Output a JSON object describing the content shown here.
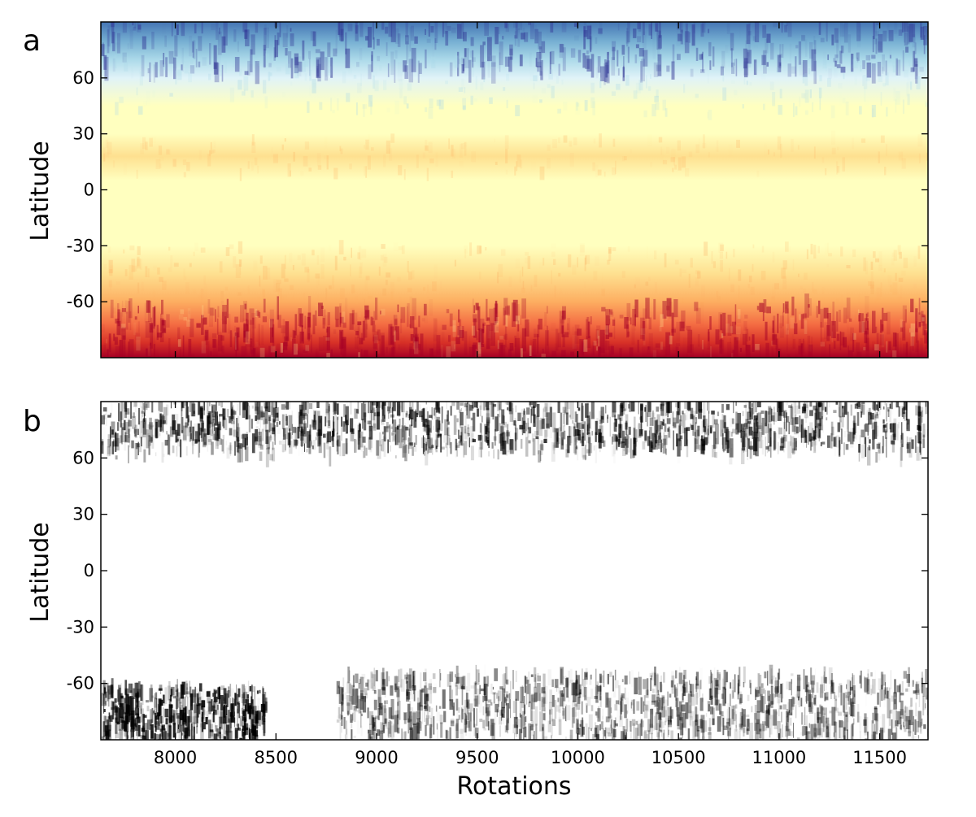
{
  "chart_data": [
    {
      "type": "heatmap",
      "panel_label": "a",
      "title": "",
      "xlabel": "",
      "ylabel": "Latitude",
      "xlim": [
        7630,
        11740
      ],
      "ylim": [
        -90,
        90
      ],
      "yticks": [
        60,
        30,
        0,
        -30,
        -60
      ],
      "xticks_visible": false,
      "colormap": "diverging red-yellow-blue (red at south, blue at north)",
      "colors": {
        "deep_red": "#a50026",
        "red": "#d73027",
        "orange": "#f46d43",
        "light_orange": "#fdae61",
        "pale_yellow": "#fee090",
        "cream": "#ffffbf",
        "pale_blue": "#e0f3f8",
        "light_blue": "#abd9e9",
        "mid_blue": "#74add1",
        "blue": "#4575b4",
        "deep_blue": "#313695"
      },
      "latitude_profile": [
        {
          "lat": 90,
          "level": 0.8
        },
        {
          "lat": 80,
          "level": 0.62
        },
        {
          "lat": 70,
          "level": 0.4
        },
        {
          "lat": 60,
          "level": 0.18
        },
        {
          "lat": 45,
          "level": 0.05
        },
        {
          "lat": 30,
          "level": -0.06
        },
        {
          "lat": 18,
          "level": -0.12
        },
        {
          "lat": 5,
          "level": -0.05
        },
        {
          "lat": -15,
          "level": 0.0
        },
        {
          "lat": -30,
          "level": -0.1
        },
        {
          "lat": -45,
          "level": -0.22
        },
        {
          "lat": -60,
          "level": -0.42
        },
        {
          "lat": -72,
          "level": -0.68
        },
        {
          "lat": -82,
          "level": -0.85
        },
        {
          "lat": -90,
          "level": -0.92
        }
      ],
      "grid": false,
      "legend": "none"
    },
    {
      "type": "heatmap",
      "panel_label": "b",
      "title": "",
      "xlabel": "Rotations",
      "ylabel": "Latitude",
      "xlim": [
        7630,
        11740
      ],
      "ylim": [
        -90,
        90
      ],
      "xticks": [
        8000,
        8500,
        9000,
        9500,
        10000,
        10500,
        11000,
        11500
      ],
      "yticks": [
        60,
        30,
        0,
        -30,
        -60
      ],
      "colormap": "grayscale (white = 0, black = high)",
      "colors": {
        "low": "#ffffff",
        "high": "#000000"
      },
      "north_band_lat_range": [
        60,
        90
      ],
      "south_band_lat_range": [
        -90,
        -55
      ],
      "south_band_gap_rotations": [
        8450,
        8800
      ],
      "grid": false,
      "legend": "none"
    }
  ]
}
